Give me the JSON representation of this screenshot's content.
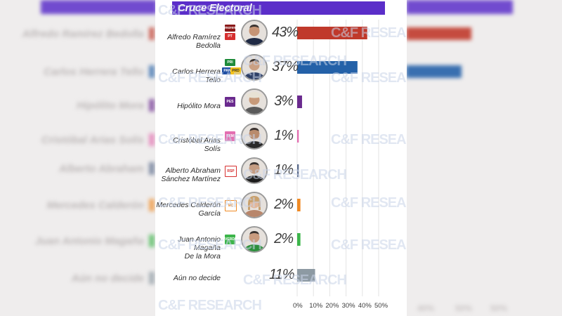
{
  "chart_data": {
    "type": "bar",
    "title": "Cruce Electoral",
    "orientation": "horizontal",
    "categories": [
      "Alfredo Ramírez Bedolla",
      "Carlos Herrera Tello",
      "Hipólito Mora",
      "Cristóbal Arias Solís",
      "Alberto Abraham Sánchez Martínez",
      "Mercedes Calderón García",
      "Juan Antonio Magaña De la Mora",
      "Aún no decide"
    ],
    "values": [
      43,
      37,
      3,
      1,
      1,
      2,
      2,
      11
    ],
    "value_labels": [
      "43%",
      "37%",
      "3%",
      "1%",
      "1%",
      "2%",
      "2%",
      "11%"
    ],
    "bar_colors": [
      "#c0392b",
      "#2461a8",
      "#6a2a8e",
      "#e36fb1",
      "#5a6b8c",
      "#f08a24",
      "#3cb54a",
      "#8d9aa3"
    ],
    "x_ticks": [
      "0%",
      "10%",
      "20%",
      "30%",
      "40%",
      "50%"
    ],
    "xlim": [
      0,
      50
    ],
    "grid": true
  },
  "rows": [
    {
      "name_lines": [
        "Alfredo Ramírez Bedolla"
      ],
      "parties": [
        "morena",
        "PT"
      ]
    },
    {
      "name_lines": [
        "Carlos Herrera Tello"
      ],
      "parties": [
        "PRI",
        "PAN",
        "PRD"
      ]
    },
    {
      "name_lines": [
        "Hipólito Mora"
      ],
      "parties": [
        "PES"
      ]
    },
    {
      "name_lines": [
        "Cristóbal Arias Solís"
      ],
      "parties": [
        "FXM"
      ]
    },
    {
      "name_lines": [
        "Alberto Abraham",
        "Sánchez Martínez"
      ],
      "parties": [
        "RSP"
      ]
    },
    {
      "name_lines": [
        "Mercedes Calderón",
        "García"
      ],
      "parties": [
        "MC"
      ]
    },
    {
      "name_lines": [
        "Juan Antonio Magaña",
        "De la Mora"
      ],
      "parties": [
        "VERDE"
      ]
    },
    {
      "name_lines": [
        "Aún no decide"
      ],
      "parties": []
    }
  ],
  "watermark": "C&F RESEARCH",
  "colors": {
    "title_bar": "#5b2ec9",
    "background": "#efeded"
  }
}
